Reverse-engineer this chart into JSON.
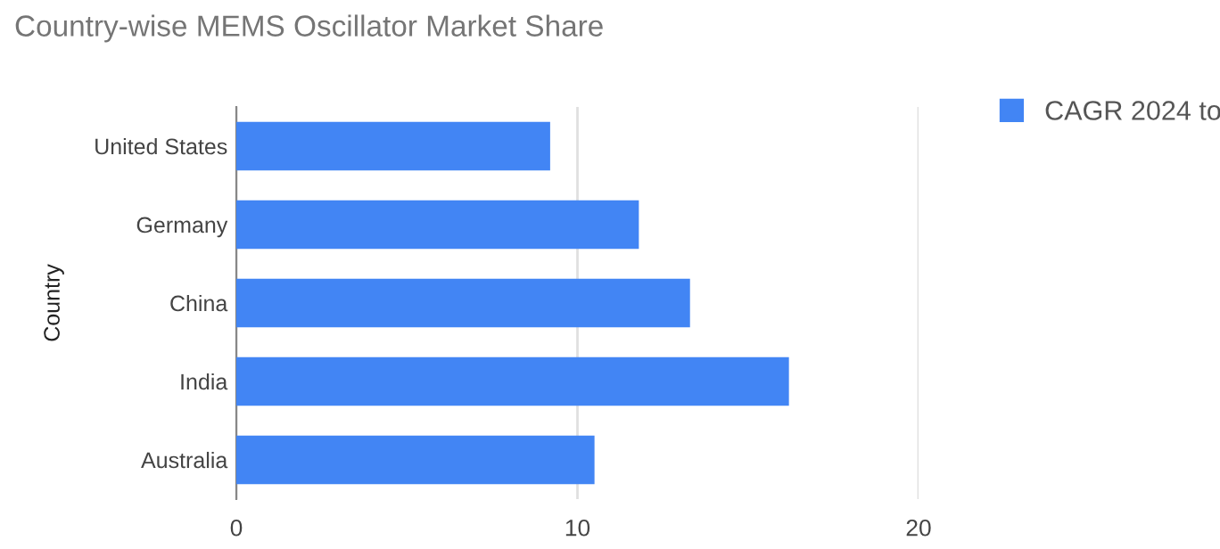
{
  "chart_data": {
    "type": "bar",
    "orientation": "horizontal",
    "title": "Country-wise MEMS Oscillator Market Share",
    "ylabel": "Country",
    "categories": [
      "United States",
      "Germany",
      "China",
      "India",
      "Australia"
    ],
    "series": [
      {
        "name": "CAGR 2024 to",
        "color": "#4285f4",
        "values": [
          9.2,
          11.8,
          13.3,
          16.2,
          10.5
        ]
      }
    ],
    "xlim": [
      0,
      20
    ],
    "xticks": [
      0,
      10,
      20
    ],
    "grid": "x",
    "legend": "top right"
  }
}
